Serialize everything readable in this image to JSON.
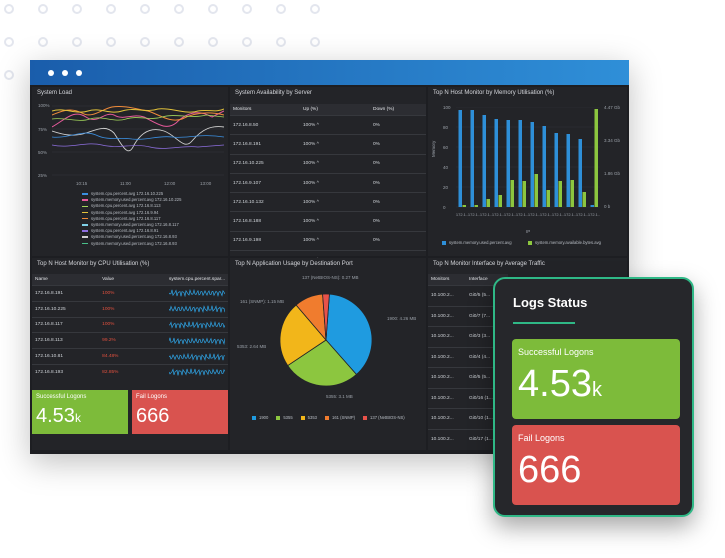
{
  "dashboard": {
    "system_load": {
      "title": "System Load",
      "y_ticks": [
        "100%",
        "75%",
        "50%",
        "25%"
      ],
      "x_ticks": [
        "10:15",
        "11:00",
        "12:00",
        "13:00"
      ],
      "legend": [
        {
          "label": "system.cpu.percent.avg 172.16.10.225",
          "color": "#3b8fe0"
        },
        {
          "label": "system.memory.used.percent.avg 172.16.10.225",
          "color": "#e85a9c"
        },
        {
          "label": "system.cpu.percent.avg 172.16.8.113",
          "color": "#a3d65c"
        },
        {
          "label": "system.cpu.percent.avg 172.16.9.94",
          "color": "#e2c23b"
        },
        {
          "label": "system.cpu.percent.avg 172.16.8.117",
          "color": "#f08c3a"
        },
        {
          "label": "system.memory.used.percent.avg 172.16.8.117",
          "color": "#7fd1e8"
        },
        {
          "label": "system.cpu.percent.avg 172.16.8.91",
          "color": "#8e6fe0"
        },
        {
          "label": "system.memory.used.percent.avg 172.16.8.93",
          "color": "#d0d0d0"
        },
        {
          "label": "system.memory.used.percent.avg 172.16.8.93",
          "color": "#49c08a"
        }
      ]
    },
    "availability": {
      "title": "System Availability by Server",
      "columns": [
        "Monitors",
        "Up (%)",
        "Down (%)"
      ],
      "rows": [
        {
          "monitor": "172.16.8.50",
          "up": "100% ^",
          "down": "0%"
        },
        {
          "monitor": "172.16.8.191",
          "up": "100% ^",
          "down": "0%"
        },
        {
          "monitor": "172.16.10.225",
          "up": "100% ^",
          "down": "0%"
        },
        {
          "monitor": "172.16.9.107",
          "up": "100% ^",
          "down": "0%"
        },
        {
          "monitor": "172.16.10.132",
          "up": "100% ^",
          "down": "0%"
        },
        {
          "monitor": "172.16.8.188",
          "up": "100% ^",
          "down": "0%"
        },
        {
          "monitor": "172.16.9.198",
          "up": "100% ^",
          "down": "0%"
        },
        {
          "monitor": "172.16.8.57",
          "up": "100% ^",
          "down": "0%"
        }
      ]
    },
    "memory_monitor": {
      "title": "Top N Host Monitor by Memory Utilisation (%)",
      "y_label": "Memory",
      "x_label": "IP",
      "left_ticks": [
        "100",
        "80",
        "60",
        "40",
        "20",
        "0"
      ],
      "right_ticks": [
        "4.47 Gb",
        "3.34 Gb",
        "1.86 Gb",
        "0 b"
      ],
      "categories": [
        "172.1..",
        "172.1..",
        "172.1..",
        "172.1..",
        "172.1..",
        "172.1..",
        "172.1..",
        "172.1..",
        "172.1..",
        "172.1..",
        "172.1..",
        "172.1.."
      ],
      "legend": [
        "system.memory.used.percent.avg",
        "system.memory.available.bytes.avg"
      ]
    },
    "cpu_monitor": {
      "title": "Top N Host Monitor by CPU Utilisation (%)",
      "columns": [
        "Name",
        "Value",
        "system.cpu.percent.spar..."
      ],
      "rows": [
        {
          "name": "172.16.8.191",
          "value": "100%"
        },
        {
          "name": "172.16.10.225",
          "value": "100%"
        },
        {
          "name": "172.16.8.117",
          "value": "100%"
        },
        {
          "name": "172.16.8.113",
          "value": "99.2%"
        },
        {
          "name": "172.16.10.81",
          "value": "84.48%"
        },
        {
          "name": "172.16.8.193",
          "value": "82.85%"
        }
      ]
    },
    "app_usage": {
      "title": "Top N Application Usage by Destination Port",
      "slice_labels": [
        "137 (NetBIOS-NS): 0.27 MB",
        "1900: 4.26 MB",
        "5355: 3.1 MB",
        "5353: 2.64 MB",
        "161 (SNMP): 1.15 MB"
      ]
    },
    "traffic": {
      "title": "Top N Monitor Interface by Average Traffic",
      "columns": [
        "Monitors",
        "Interface"
      ],
      "rows": [
        {
          "monitor": "10.100.2...",
          "interface": "Gi0/5 (5..."
        },
        {
          "monitor": "10.100.2...",
          "interface": "Gi0/7 (7..."
        },
        {
          "monitor": "10.100.2...",
          "interface": "Gi0/3 (3..."
        },
        {
          "monitor": "10.100.2...",
          "interface": "Gi0/4 (4..."
        },
        {
          "monitor": "10.100.2...",
          "interface": "Gi0/5 (5..."
        },
        {
          "monitor": "10.100.2...",
          "interface": "Gi0/16 (1..."
        },
        {
          "monitor": "10.100.2...",
          "interface": "Gi0/10 (1..."
        },
        {
          "monitor": "10.100.2...",
          "interface": "Gi0/17 (1..."
        }
      ]
    },
    "success_tile": {
      "label": "Successful Logons",
      "value": "4.53",
      "unit": "k"
    },
    "fail_tile": {
      "label": "Fail Logons",
      "value": "666"
    }
  },
  "logs_status": {
    "title": "Logs Status",
    "success": {
      "label": "Successful Logons",
      "value": "4.53",
      "unit": "k"
    },
    "fail": {
      "label": "Fail Logons",
      "value": "666"
    }
  },
  "chart_data": [
    {
      "type": "pie",
      "title": "Top N Application Usage by Destination Port",
      "categories": [
        "1900",
        "5355",
        "5353",
        "161 (SNMP)",
        "137 (NetBIOS-NS)"
      ],
      "values": [
        4.26,
        3.1,
        2.64,
        1.15,
        0.27
      ],
      "unit": "MB",
      "colors": [
        "#1f9be0",
        "#8cc63f",
        "#f2b61a",
        "#f07c2e",
        "#e8524a"
      ],
      "legend": "bottom"
    },
    {
      "type": "bar",
      "title": "Top N Host Monitor by Memory Utilisation (%)",
      "categories": [
        "172.1..",
        "172.1..",
        "172.1..",
        "172.1..",
        "172.1..",
        "172.1..",
        "172.1..",
        "172.1..",
        "172.1..",
        "172.1..",
        "172.1..",
        "172.1.."
      ],
      "series": [
        {
          "name": "system.memory.used.percent.avg",
          "color": "#2e8fd8",
          "values": [
            97,
            97,
            92,
            88,
            87,
            87,
            85,
            81,
            74,
            73,
            68,
            2
          ]
        },
        {
          "name": "system.memory.available.bytes.avg",
          "color": "#8cc63f",
          "values": [
            2,
            2,
            8,
            12,
            27,
            26,
            33,
            17,
            26,
            27,
            15,
            98
          ]
        }
      ],
      "ylim": [
        0,
        100
      ],
      "ylabel": "Memory",
      "xlabel": "IP"
    }
  ]
}
